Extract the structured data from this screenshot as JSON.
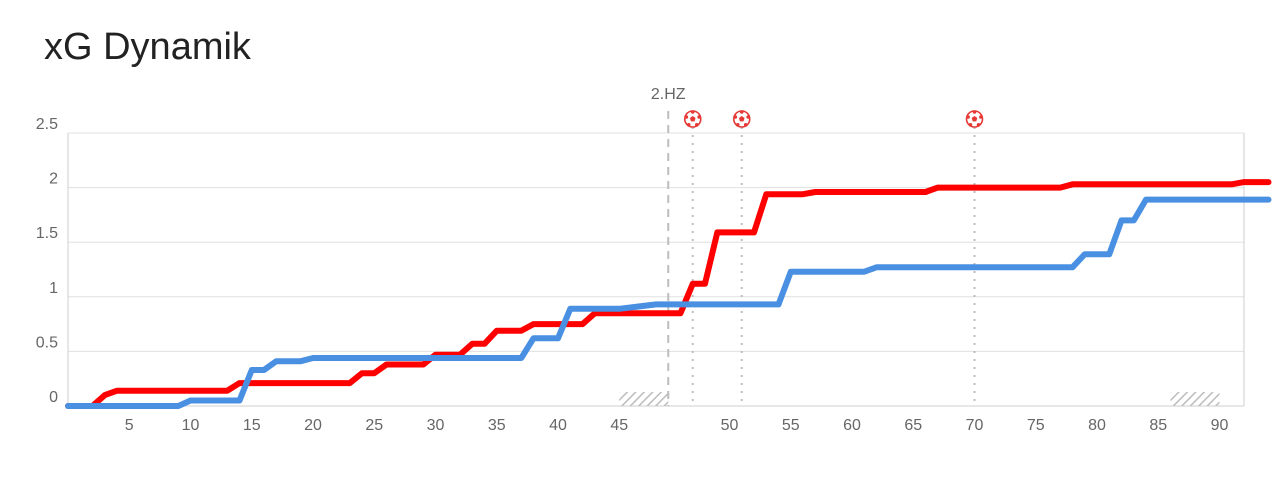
{
  "page": {
    "title": "xG Dynamik"
  },
  "chart_data": {
    "type": "line",
    "title": "xG Dynamik",
    "xlabel": "",
    "ylabel": "",
    "xlim": [
      0,
      94
    ],
    "ylim": [
      0,
      2.5
    ],
    "x_ticks_first_half": [
      5,
      10,
      15,
      20,
      25,
      30,
      35,
      40,
      45
    ],
    "x_ticks_second_half": [
      50,
      55,
      60,
      65,
      70,
      75,
      80,
      85,
      90
    ],
    "y_ticks": [
      "0",
      "0.5",
      "1",
      "1.5",
      "2",
      "2.5"
    ],
    "grid": true,
    "legend": "none",
    "halftime_label": "2.HZ",
    "halftime_minute": 45,
    "first_half_stoppage": [
      45,
      49
    ],
    "second_half_stoppage": [
      90,
      94
    ],
    "goal_minutes": [
      47,
      51,
      70
    ],
    "goal_color": "#e53935",
    "series": [
      {
        "color": "#ff0000",
        "points": [
          [
            0,
            0
          ],
          [
            2,
            0
          ],
          [
            3,
            0.1
          ],
          [
            4,
            0.14
          ],
          [
            12,
            0.14
          ],
          [
            13,
            0.14
          ],
          [
            14,
            0.21
          ],
          [
            23,
            0.21
          ],
          [
            24,
            0.3
          ],
          [
            25,
            0.3
          ],
          [
            26,
            0.38
          ],
          [
            29,
            0.38
          ],
          [
            30,
            0.47
          ],
          [
            32,
            0.47
          ],
          [
            33,
            0.57
          ],
          [
            34,
            0.57
          ],
          [
            35,
            0.69
          ],
          [
            37,
            0.69
          ],
          [
            38,
            0.75
          ],
          [
            42,
            0.75
          ],
          [
            43,
            0.85
          ],
          [
            48,
            0.85
          ],
          [
            49,
            1.12
          ],
          [
            50,
            1.12
          ],
          [
            51,
            1.59
          ],
          [
            54,
            1.59
          ],
          [
            55,
            1.94
          ],
          [
            58,
            1.94
          ],
          [
            59,
            1.96
          ],
          [
            66,
            1.96
          ],
          [
            67,
            1.96
          ],
          [
            68,
            1.96
          ],
          [
            69,
            2.0
          ],
          [
            79,
            2.0
          ],
          [
            80,
            2.03
          ],
          [
            93,
            2.03
          ],
          [
            94,
            2.05
          ],
          [
            96,
            2.05
          ]
        ]
      },
      {
        "color": "#4a90e2",
        "points": [
          [
            0,
            0
          ],
          [
            9,
            0
          ],
          [
            10,
            0.05
          ],
          [
            14,
            0.05
          ],
          [
            15,
            0.33
          ],
          [
            16,
            0.33
          ],
          [
            17,
            0.41
          ],
          [
            19,
            0.41
          ],
          [
            20,
            0.44
          ],
          [
            37,
            0.44
          ],
          [
            38,
            0.62
          ],
          [
            40,
            0.62
          ],
          [
            41,
            0.89
          ],
          [
            45,
            0.89
          ],
          [
            46,
            0.93
          ],
          [
            56,
            0.93
          ],
          [
            57,
            1.23
          ],
          [
            63,
            1.23
          ],
          [
            64,
            1.27
          ],
          [
            80,
            1.27
          ],
          [
            81,
            1.39
          ],
          [
            83,
            1.39
          ],
          [
            84,
            1.7
          ],
          [
            85,
            1.7
          ],
          [
            86,
            1.89
          ],
          [
            96,
            1.89
          ]
        ]
      }
    ]
  }
}
